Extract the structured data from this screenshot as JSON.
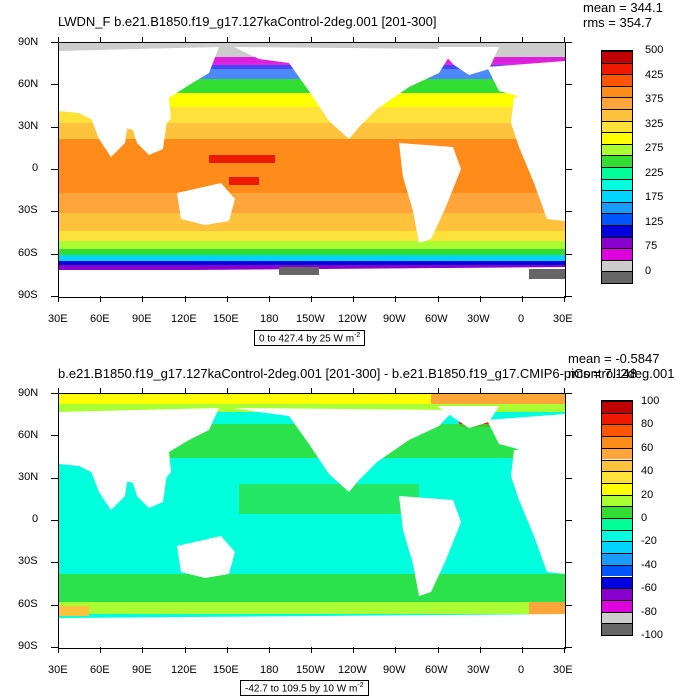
{
  "panels": [
    {
      "title": "LWDN_F b.e21.B1850.f19_g17.127kaControl-2deg.001 [201-300]",
      "mean": "mean = 344.1",
      "rms": "rms = 354.7",
      "range_text": "0 to 427.4 by 25",
      "units": "W m",
      "units_exp": "-2",
      "lat_labels": [
        "90N",
        "60N",
        "30N",
        "0",
        "30S",
        "60S",
        "90S"
      ],
      "lon_labels": [
        "30E",
        "60E",
        "90E",
        "120E",
        "150E",
        "180",
        "150W",
        "120W",
        "90W",
        "60W",
        "30W",
        "0",
        "30E"
      ],
      "colorbar": {
        "labels": [
          "500",
          "425",
          "375",
          "325",
          "275",
          "225",
          "175",
          "125",
          "75",
          "0"
        ],
        "colors": [
          "#c00000",
          "#ee1a00",
          "#ff5500",
          "#ff8c1a",
          "#ffa53a",
          "#ffc23c",
          "#ffe13c",
          "#ffff00",
          "#aaff33",
          "#33dd33",
          "#00ff99",
          "#00ffdd",
          "#00d4ff",
          "#1a9cff",
          "#0055ff",
          "#0000dd",
          "#8800cc",
          "#dd00dd",
          "#cccccc",
          "#666666"
        ]
      }
    },
    {
      "title": "b.e21.B1850.f19_g17.127kaControl-2deg.001 [201-300] - b.e21.B1850.f19_g17.CMIP6-piControl-2deg.001",
      "mean": "mean = -0.5847",
      "rms": "rms = 7.148",
      "range_text": "-42.7 to 109.5 by 10",
      "units": "W m",
      "units_exp": "-2",
      "lat_labels": [
        "90N",
        "60N",
        "30N",
        "0",
        "30S",
        "60S",
        "90S"
      ],
      "lon_labels": [
        "30E",
        "60E",
        "90E",
        "120E",
        "150E",
        "180",
        "150W",
        "120W",
        "90W",
        "60W",
        "30W",
        "0",
        "30E"
      ],
      "colorbar": {
        "labels": [
          "100",
          "80",
          "60",
          "40",
          "20",
          "0",
          "-20",
          "-40",
          "-60",
          "-80",
          "-100"
        ],
        "colors": [
          "#c00000",
          "#ee1a00",
          "#ff5500",
          "#ff8c1a",
          "#ffa53a",
          "#ffc23c",
          "#ffe13c",
          "#ffff00",
          "#aaff33",
          "#33dd33",
          "#00ff99",
          "#00ffdd",
          "#00d4ff",
          "#1a9cff",
          "#0055ff",
          "#0000dd",
          "#8800cc",
          "#dd00dd",
          "#cccccc",
          "#666666"
        ]
      }
    }
  ]
}
